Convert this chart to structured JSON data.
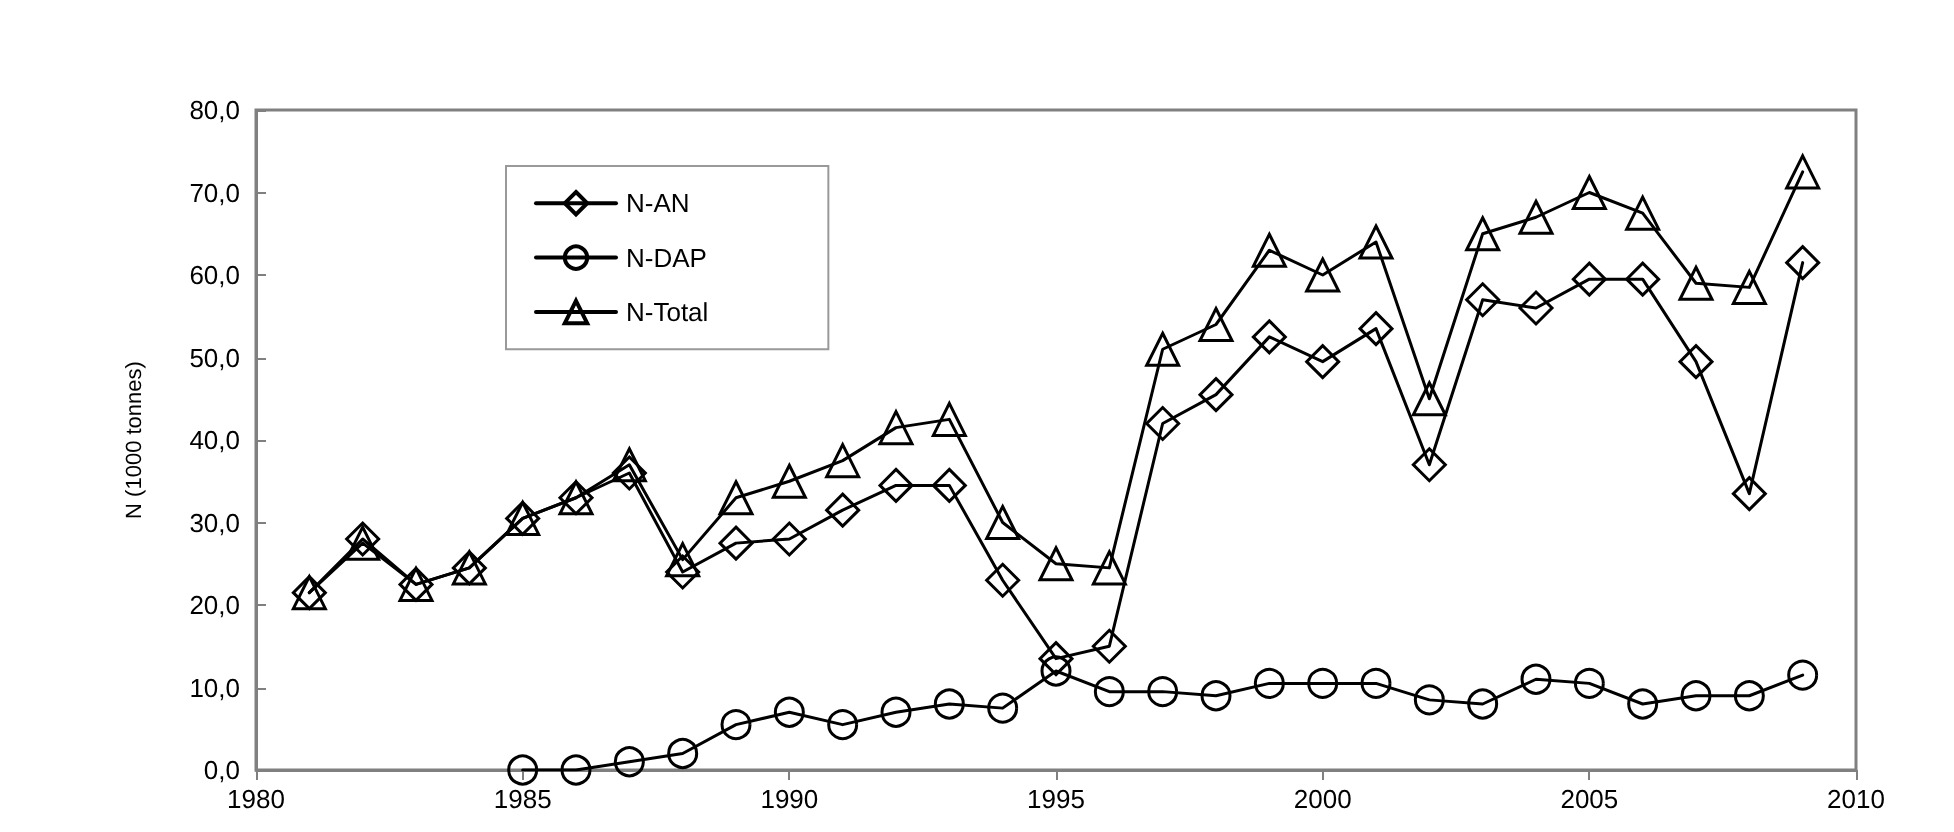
{
  "chart_data": {
    "type": "line",
    "ylabel": "N (1000 tonnes)",
    "x": [
      1981,
      1982,
      1983,
      1984,
      1985,
      1986,
      1987,
      1988,
      1989,
      1990,
      1991,
      1992,
      1993,
      1994,
      1995,
      1996,
      1997,
      1998,
      1999,
      2000,
      2001,
      2002,
      2003,
      2004,
      2005,
      2006,
      2007,
      2008,
      2009
    ],
    "series": [
      {
        "name": "N-AN",
        "color": "#000000",
        "marker": "diamond",
        "values": [
          21.5,
          28,
          22.5,
          24.5,
          30.5,
          33,
          36,
          24,
          27.5,
          28,
          31.5,
          34.5,
          34.5,
          23,
          13.5,
          15,
          42,
          45.5,
          52.5,
          49.5,
          53.5,
          37,
          57,
          56,
          59.5,
          59.5,
          49.5,
          33.5,
          61.5
        ]
      },
      {
        "name": "N-DAP",
        "color": "#000000",
        "marker": "circle",
        "values": [
          null,
          null,
          null,
          null,
          0,
          0,
          1,
          2,
          5.5,
          7,
          5.5,
          7,
          8,
          7.5,
          12,
          9.5,
          9.5,
          9,
          10.5,
          10.5,
          10.5,
          8.5,
          8,
          11,
          10.5,
          8,
          9,
          9,
          11.5
        ]
      },
      {
        "name": "N-Total",
        "color": "#000000",
        "marker": "triangle",
        "values": [
          21.5,
          27.5,
          22.5,
          24.5,
          30.5,
          33,
          37,
          25.5,
          33,
          35,
          37.5,
          41.5,
          42.5,
          30,
          25,
          24.5,
          51,
          54,
          63,
          60,
          64,
          45,
          65,
          67,
          70,
          67.5,
          59,
          58.5,
          72.5
        ]
      }
    ],
    "xlim": [
      1980,
      2010
    ],
    "xticks": [
      1980,
      1985,
      1990,
      1995,
      2000,
      2005,
      2010
    ],
    "ylim": [
      0,
      80
    ],
    "yticks": [
      {
        "value": 0,
        "label": "0,0"
      },
      {
        "value": 10,
        "label": "10,0"
      },
      {
        "value": 20,
        "label": "20,0"
      },
      {
        "value": 30,
        "label": "30,0"
      },
      {
        "value": 40,
        "label": "40,0"
      },
      {
        "value": 50,
        "label": "50,0"
      },
      {
        "value": 60,
        "label": "60,0"
      },
      {
        "value": 70,
        "label": "70,0"
      },
      {
        "value": 80,
        "label": "80,0"
      }
    ],
    "grid": false,
    "legend": "top left",
    "line_style": "solid"
  }
}
